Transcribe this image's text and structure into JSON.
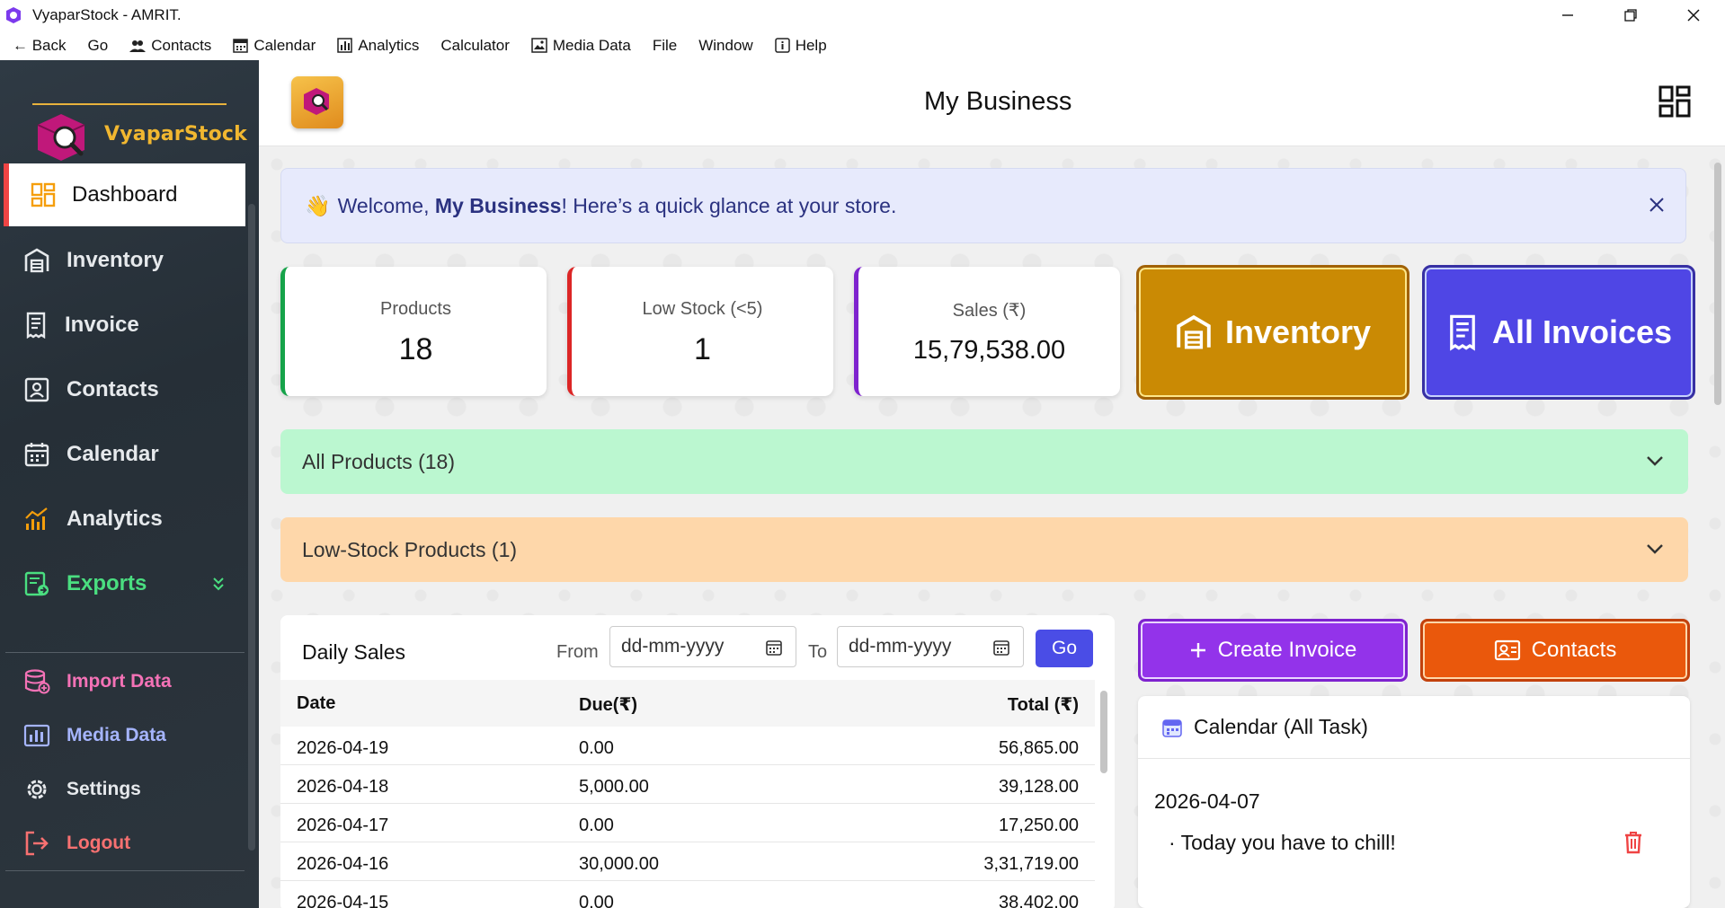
{
  "window": {
    "title": "VyaparStock - AMRIT.",
    "controls": {
      "minimize": "minimize-icon",
      "restore": "restore-icon",
      "close": "close-icon"
    }
  },
  "menubar": {
    "items": [
      {
        "label": "← Back",
        "icon": null
      },
      {
        "label": "Go",
        "icon": null
      },
      {
        "label": "Contacts",
        "icon": "people-icon"
      },
      {
        "label": "Calendar",
        "icon": "calendar-icon"
      },
      {
        "label": "Analytics",
        "icon": "bar-chart-icon"
      },
      {
        "label": "Calculator",
        "icon": null
      },
      {
        "label": "Media Data",
        "icon": "image-icon"
      },
      {
        "label": "File",
        "icon": null
      },
      {
        "label": "Window",
        "icon": null
      },
      {
        "label": "Help",
        "icon": "info-icon"
      }
    ]
  },
  "sidebar": {
    "logo_text": "VyaparStock",
    "items": [
      {
        "label": "Dashboard",
        "icon": "dashboard-icon",
        "active": true,
        "color": "#111111"
      },
      {
        "label": "Inventory",
        "icon": "warehouse-icon",
        "color": "#e6e9ec"
      },
      {
        "label": "Invoice",
        "icon": "receipt-icon",
        "color": "#e6e9ec"
      },
      {
        "label": "Contacts",
        "icon": "contact-card-icon",
        "color": "#e6e9ec"
      },
      {
        "label": "Calendar",
        "icon": "calendar-icon",
        "color": "#e6e9ec"
      },
      {
        "label": "Analytics",
        "icon": "analytics-icon",
        "color": "#e6e9ec"
      },
      {
        "label": "Exports",
        "icon": "export-icon",
        "color": "#4ade80",
        "expandable": true
      },
      {
        "label": "Import Data",
        "icon": "database-icon",
        "color": "#f472b6"
      },
      {
        "label": "Media Data",
        "icon": "media-icon",
        "color": "#a5b4fc"
      },
      {
        "label": "Settings",
        "icon": "gear-icon",
        "color": "#e6e9ec"
      },
      {
        "label": "Logout",
        "icon": "logout-icon",
        "color": "#f87171"
      }
    ]
  },
  "header": {
    "title": "My Business",
    "menu_icon": "grid-icon"
  },
  "welcome": {
    "wave": "👋",
    "prefix": "Welcome, ",
    "name": "My Business",
    "suffix": "! Here’s a quick glance at your store."
  },
  "stats": [
    {
      "label": "Products",
      "value": "18",
      "accent": "#16a34a"
    },
    {
      "label": "Low Stock (<5)",
      "value": "1",
      "accent": "#dc2626"
    },
    {
      "label": "Sales (₹)",
      "value": "15,79,538.00",
      "accent": "#7e22ce"
    }
  ],
  "quick_buttons": [
    {
      "label": "Inventory",
      "icon": "warehouse-icon",
      "bg": "#ca8a04",
      "border": "#a16207"
    },
    {
      "label": "All Invoices",
      "icon": "receipt-icon",
      "bg": "#4f46e5",
      "border": "#3730a3"
    }
  ],
  "accordions": [
    {
      "label": "All Products (18)",
      "bg": "#bbf7d0"
    },
    {
      "label": "Low-Stock Products (1)",
      "bg": "#fed7aa"
    }
  ],
  "daily_sales": {
    "title": "Daily Sales",
    "from_label": "From",
    "to_label": "To",
    "from_placeholder": "dd-mm-yyyy",
    "to_placeholder": "dd-mm-yyyy",
    "go_label": "Go",
    "columns": [
      "Date",
      "Due(₹)",
      "Total (₹)"
    ],
    "rows": [
      [
        "2026-04-19",
        "0.00",
        "56,865.00"
      ],
      [
        "2026-04-18",
        "5,000.00",
        "39,128.00"
      ],
      [
        "2026-04-17",
        "0.00",
        "17,250.00"
      ],
      [
        "2026-04-16",
        "30,000.00",
        "3,31,719.00"
      ],
      [
        "2026-04-15",
        "0.00",
        "38,402.00"
      ]
    ]
  },
  "actions": [
    {
      "label": "Create Invoice",
      "icon": "plus-icon",
      "bg": "#9333ea"
    },
    {
      "label": "Contacts",
      "icon": "contact-card-icon",
      "bg": "#ea580c"
    }
  ],
  "calendar_panel": {
    "title": "Calendar (All Task)",
    "date": "2026-04-07",
    "task": "· Today you have to chill!",
    "delete_icon": "trash-icon"
  }
}
